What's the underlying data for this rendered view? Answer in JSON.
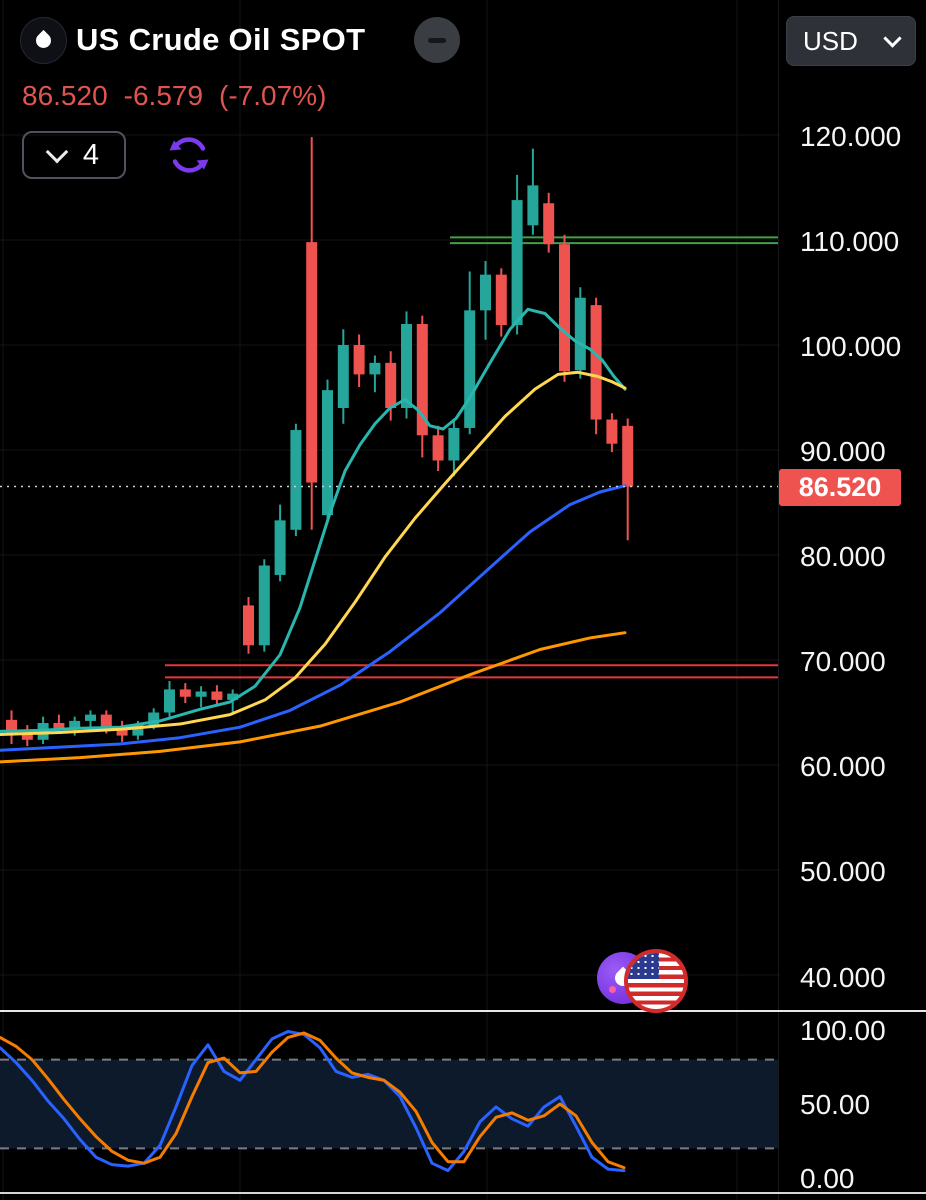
{
  "header": {
    "title": "US Crude Oil SPOT",
    "price": "86.520",
    "change": "-6.579",
    "change_pct": "(-7.07%)",
    "timeframe": "4",
    "currency": "USD"
  },
  "price_scale": {
    "labels": [
      "120.000",
      "110.000",
      "100.000",
      "90.000",
      "80.000",
      "70.000",
      "60.000",
      "50.000",
      "40.000"
    ],
    "badge": "86.520"
  },
  "indicator_scale": {
    "labels": [
      "100.00",
      "50.00",
      "0.00"
    ]
  },
  "colors": {
    "candle_up": "#26a69a",
    "candle_down": "#ef5350",
    "price_text_down": "#e0554f",
    "badge_bg": "#ef5350",
    "accent_purple": "#7c3aed",
    "separator": "#e8e8e8"
  },
  "chart_data": [
    {
      "type": "candlestick",
      "title": "US Crude Oil SPOT",
      "currency": "USD",
      "timeframe": "4",
      "y_axis": {
        "ticks": [
          120,
          110,
          100,
          90,
          80,
          70,
          60,
          50,
          40
        ],
        "current_price": 86.52,
        "ylim": [
          38,
          122
        ]
      },
      "candles": [
        [
          64.3,
          65.2,
          62.0,
          63.0
        ],
        [
          63.0,
          63.8,
          61.8,
          62.4
        ],
        [
          62.4,
          64.6,
          62.0,
          64.0
        ],
        [
          64.0,
          64.8,
          63.0,
          63.4
        ],
        [
          63.4,
          64.6,
          62.8,
          64.2
        ],
        [
          64.2,
          65.2,
          63.6,
          64.8
        ],
        [
          64.8,
          65.2,
          63.0,
          63.5
        ],
        [
          63.5,
          64.2,
          62.2,
          62.8
        ],
        [
          62.8,
          64.2,
          62.4,
          63.8
        ],
        [
          63.8,
          65.4,
          63.4,
          65.0
        ],
        [
          65.0,
          68.0,
          64.6,
          67.2
        ],
        [
          67.2,
          67.8,
          65.9,
          66.5
        ],
        [
          66.5,
          67.5,
          65.5,
          67.0
        ],
        [
          67.0,
          67.6,
          65.7,
          66.2
        ],
        [
          66.2,
          67.2,
          64.8,
          66.8
        ],
        [
          75.2,
          76.0,
          70.6,
          71.4
        ],
        [
          71.4,
          79.6,
          70.8,
          79.0
        ],
        [
          78.1,
          84.8,
          77.5,
          83.3
        ],
        [
          82.4,
          92.5,
          81.8,
          91.9
        ],
        [
          109.8,
          119.8,
          82.4,
          86.9
        ],
        [
          83.8,
          96.7,
          83.0,
          95.7
        ],
        [
          94.0,
          101.5,
          92.5,
          100.0
        ],
        [
          100.0,
          101.0,
          96.0,
          97.2
        ],
        [
          97.2,
          99.0,
          95.5,
          98.3
        ],
        [
          98.3,
          99.4,
          92.8,
          94.0
        ],
        [
          94.0,
          103.2,
          93.0,
          102.0
        ],
        [
          102.0,
          102.8,
          89.3,
          91.4
        ],
        [
          91.4,
          92.3,
          88.0,
          89.0
        ],
        [
          89.0,
          93.0,
          87.5,
          92.1
        ],
        [
          92.1,
          107.0,
          91.5,
          103.3
        ],
        [
          103.3,
          108.0,
          100.5,
          106.7
        ],
        [
          106.7,
          107.3,
          100.8,
          101.9
        ],
        [
          101.9,
          116.2,
          101.0,
          113.8
        ],
        [
          111.4,
          118.7,
          110.5,
          115.2
        ],
        [
          113.5,
          114.5,
          108.8,
          109.6
        ],
        [
          109.6,
          110.5,
          96.5,
          97.5
        ],
        [
          97.6,
          105.5,
          96.8,
          104.5
        ],
        [
          103.8,
          104.5,
          91.5,
          92.9
        ],
        [
          92.9,
          93.5,
          89.8,
          90.6
        ],
        [
          92.3,
          93.0,
          81.4,
          86.52
        ]
      ],
      "overlays": [
        {
          "name": "ma-fast-teal",
          "color": "#29b6af",
          "points": [
            [
              0,
              63.2
            ],
            [
              40,
              63.3
            ],
            [
              80,
              63.5
            ],
            [
              120,
              63.6
            ],
            [
              160,
              64.2
            ],
            [
              200,
              65.3
            ],
            [
              230,
              66.0
            ],
            [
              255,
              67.5
            ],
            [
              280,
              70.5
            ],
            [
              300,
              75.0
            ],
            [
              315,
              79.5
            ],
            [
              330,
              84.0
            ],
            [
              345,
              88.0
            ],
            [
              360,
              90.5
            ],
            [
              375,
              92.5
            ],
            [
              390,
              94.0
            ],
            [
              405,
              94.8
            ],
            [
              418,
              93.8
            ],
            [
              430,
              92.3
            ],
            [
              443,
              92.0
            ],
            [
              456,
              93.0
            ],
            [
              470,
              95.0
            ],
            [
              490,
              98.3
            ],
            [
              510,
              101.5
            ],
            [
              528,
              103.4
            ],
            [
              545,
              103.0
            ],
            [
              560,
              101.6
            ],
            [
              575,
              100.4
            ],
            [
              590,
              99.6
            ],
            [
              602,
              98.6
            ],
            [
              614,
              97.0
            ],
            [
              625,
              95.8
            ]
          ]
        },
        {
          "name": "ma-mid-yellow",
          "color": "#ffd750",
          "points": [
            [
              0,
              62.9
            ],
            [
              60,
              63.1
            ],
            [
              120,
              63.4
            ],
            [
              180,
              63.9
            ],
            [
              230,
              64.8
            ],
            [
              265,
              66.2
            ],
            [
              295,
              68.3
            ],
            [
              325,
              71.5
            ],
            [
              355,
              75.5
            ],
            [
              385,
              79.8
            ],
            [
              415,
              83.5
            ],
            [
              445,
              86.8
            ],
            [
              475,
              90.0
            ],
            [
              505,
              93.2
            ],
            [
              535,
              95.8
            ],
            [
              558,
              97.2
            ],
            [
              578,
              97.4
            ],
            [
              598,
              97.0
            ],
            [
              612,
              96.5
            ],
            [
              625,
              95.9
            ]
          ]
        },
        {
          "name": "ma-slow-blue",
          "color": "#2962ff",
          "points": [
            [
              0,
              61.4
            ],
            [
              60,
              61.7
            ],
            [
              120,
              62.0
            ],
            [
              180,
              62.6
            ],
            [
              240,
              63.6
            ],
            [
              290,
              65.2
            ],
            [
              340,
              67.6
            ],
            [
              390,
              70.8
            ],
            [
              440,
              74.5
            ],
            [
              490,
              78.8
            ],
            [
              530,
              82.2
            ],
            [
              570,
              84.8
            ],
            [
              600,
              86.0
            ],
            [
              625,
              86.6
            ]
          ]
        },
        {
          "name": "ma-slowest-orange",
          "color": "#ff9800",
          "points": [
            [
              0,
              60.3
            ],
            [
              80,
              60.7
            ],
            [
              160,
              61.3
            ],
            [
              240,
              62.2
            ],
            [
              320,
              63.7
            ],
            [
              400,
              66.0
            ],
            [
              470,
              68.6
            ],
            [
              540,
              71.0
            ],
            [
              590,
              72.1
            ],
            [
              625,
              72.6
            ]
          ]
        }
      ],
      "levels": [
        {
          "type": "resistance",
          "color": "#43a047",
          "prices": [
            110.25,
            109.7
          ],
          "x_start": 450
        },
        {
          "type": "support",
          "color": "#e53935",
          "prices": [
            69.5,
            68.35
          ],
          "x_start": 165
        }
      ]
    },
    {
      "type": "line",
      "name": "Stochastic",
      "y_axis": {
        "ticks": [
          100,
          50,
          0
        ],
        "bands": [
          80,
          20
        ],
        "ylim": [
          0,
          100
        ]
      },
      "x_step": 16,
      "series": [
        {
          "name": "%K",
          "color": "#2962ff",
          "values": [
            88,
            78,
            66,
            52,
            40,
            26,
            14,
            9,
            8,
            10,
            22,
            48,
            76,
            90,
            72,
            66,
            80,
            94,
            99,
            97,
            88,
            72,
            68,
            70,
            66,
            55,
            34,
            10,
            5,
            18,
            38,
            48,
            40,
            35,
            48,
            55,
            35,
            14,
            6,
            5
          ]
        },
        {
          "name": "%D",
          "color": "#f57c00",
          "values": [
            95,
            89,
            80,
            67,
            53,
            40,
            28,
            18,
            12,
            10,
            14,
            30,
            55,
            78,
            81,
            71,
            72,
            85,
            95,
            98,
            93,
            81,
            71,
            68,
            66,
            58,
            45,
            24,
            11,
            11,
            28,
            41,
            44,
            39,
            42,
            50,
            42,
            24,
            11,
            7
          ]
        }
      ]
    }
  ]
}
